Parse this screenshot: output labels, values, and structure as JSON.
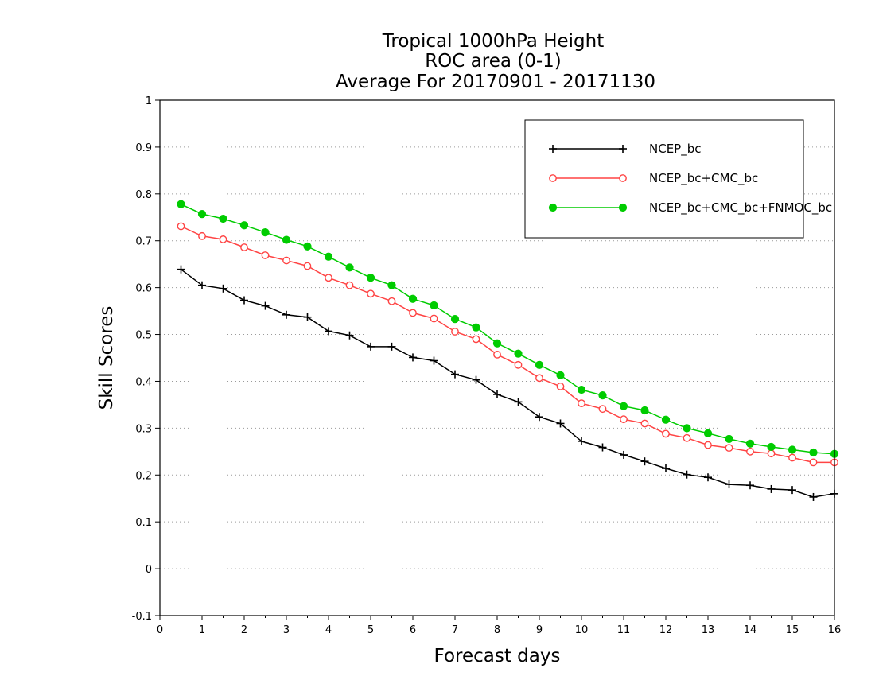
{
  "chart_data": {
    "type": "line",
    "title": [
      "Tropical 1000hPa Height",
      "ROC area (0-1)",
      "Average For 20170901 - 20171130"
    ],
    "xlabel": "Forecast days",
    "ylabel": "Skill Scores",
    "xlim": [
      0,
      16
    ],
    "ylim": [
      -0.1,
      1
    ],
    "xticks": [
      0,
      1,
      2,
      3,
      4,
      5,
      6,
      7,
      8,
      9,
      10,
      11,
      12,
      13,
      14,
      15,
      16
    ],
    "yticks": [
      -0.1,
      0,
      0.1,
      0.2,
      0.3,
      0.4,
      0.5,
      0.6,
      0.7,
      0.8,
      0.9,
      1
    ],
    "ytick_labels": [
      "-0.1",
      "0",
      "0.1",
      "0.2",
      "0.3",
      "0.4",
      "0.5",
      "0.6",
      "0.7",
      "0.8",
      "0.9",
      "1"
    ],
    "grid": "horizontal dotted",
    "legend_position": "top-right",
    "x": [
      0.5,
      1,
      1.5,
      2,
      2.5,
      3,
      3.5,
      4,
      4.5,
      5,
      5.5,
      6,
      6.5,
      7,
      7.5,
      8,
      8.5,
      9,
      9.5,
      10,
      10.5,
      11,
      11.5,
      12,
      12.5,
      13,
      13.5,
      14,
      14.5,
      15,
      15.5,
      16
    ],
    "series": [
      {
        "name": "NCEP_bc",
        "color": "#000000",
        "marker": "plus",
        "values": [
          0.639,
          0.605,
          0.598,
          0.573,
          0.561,
          0.542,
          0.537,
          0.507,
          0.498,
          0.474,
          0.474,
          0.451,
          0.444,
          0.415,
          0.403,
          0.372,
          0.356,
          0.324,
          0.31,
          0.272,
          0.259,
          0.243,
          0.229,
          0.214,
          0.201,
          0.195,
          0.18,
          0.178,
          0.17,
          0.168,
          0.153,
          0.16
        ]
      },
      {
        "name": "NCEP_bc+CMC_bc",
        "color": "#ff4444",
        "marker": "open-circle",
        "values": [
          0.731,
          0.71,
          0.703,
          0.686,
          0.669,
          0.658,
          0.646,
          0.621,
          0.605,
          0.587,
          0.571,
          0.546,
          0.534,
          0.506,
          0.49,
          0.457,
          0.435,
          0.407,
          0.389,
          0.353,
          0.341,
          0.319,
          0.31,
          0.288,
          0.279,
          0.264,
          0.258,
          0.25,
          0.246,
          0.237,
          0.227,
          0.227
        ]
      },
      {
        "name": "NCEP_bc+CMC_bc+FNMOC_bc",
        "color": "#00cc00",
        "marker": "filled-circle",
        "values": [
          0.778,
          0.757,
          0.747,
          0.733,
          0.718,
          0.702,
          0.688,
          0.666,
          0.643,
          0.621,
          0.605,
          0.576,
          0.562,
          0.533,
          0.515,
          0.481,
          0.459,
          0.435,
          0.413,
          0.382,
          0.37,
          0.347,
          0.338,
          0.318,
          0.3,
          0.289,
          0.277,
          0.267,
          0.26,
          0.254,
          0.248,
          0.245
        ]
      }
    ]
  }
}
